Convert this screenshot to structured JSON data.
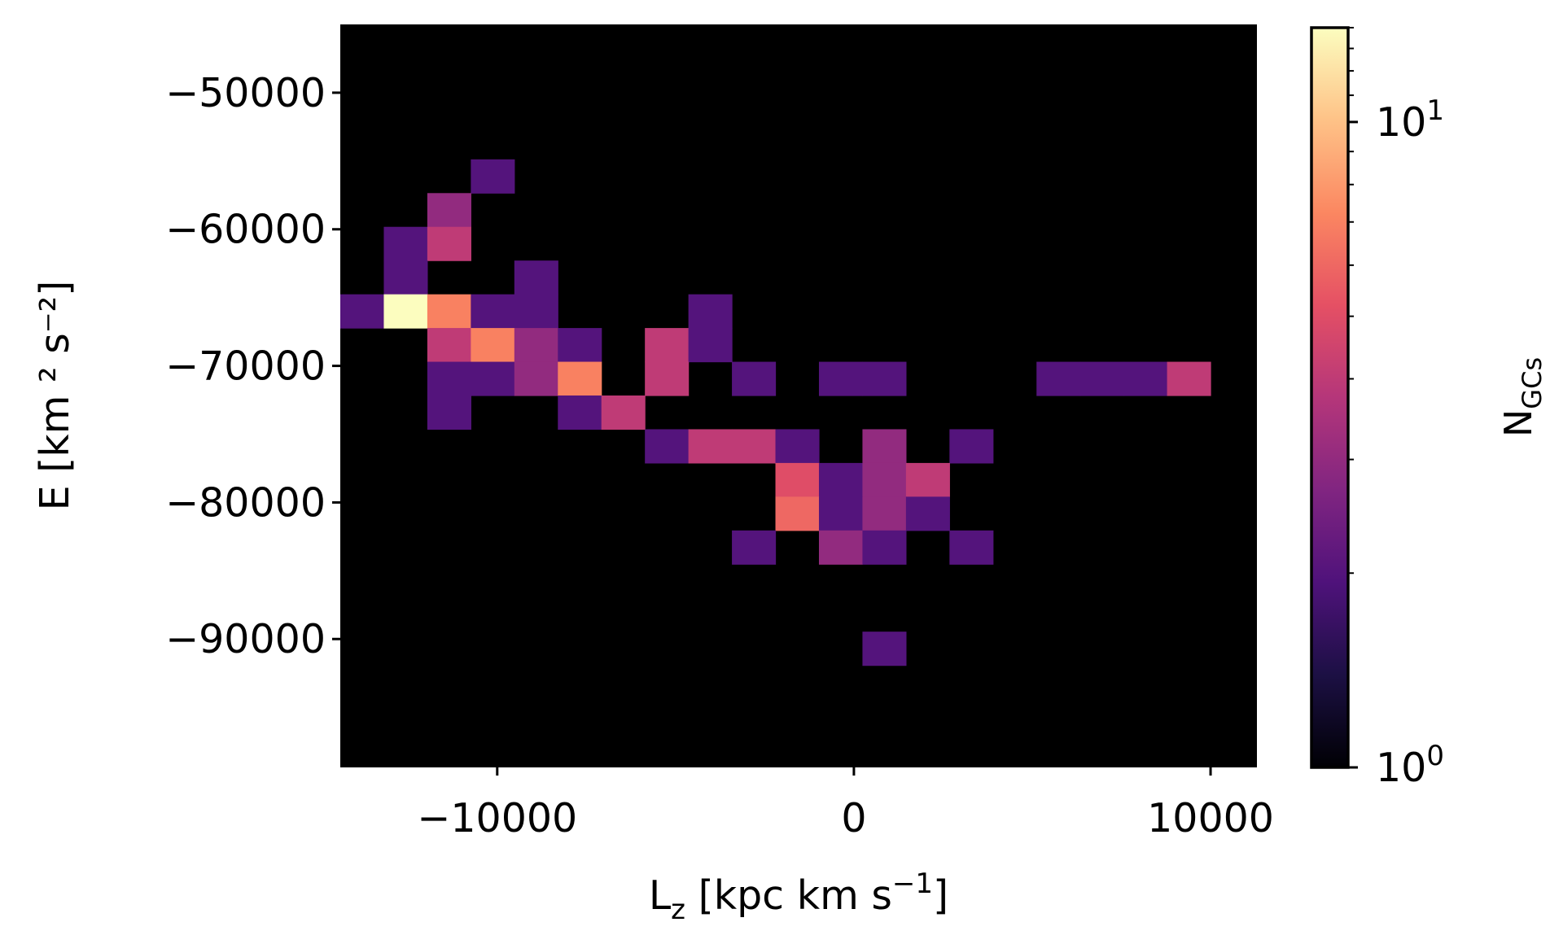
{
  "chart_data": {
    "type": "heatmap",
    "xlabel": {
      "main": "L",
      "sub": "z",
      "rest": " [kpc km s",
      "sup": "−1",
      "end": "]"
    },
    "ylabel": "E [km ² s⁻²]",
    "colorbar_label": {
      "main": "N",
      "sub": "GCs"
    },
    "colorbar_scale": "log",
    "colorbar_range": [
      1,
      14
    ],
    "colorbar_ticks": [
      {
        "value": 1,
        "label": "10",
        "exp": "0"
      },
      {
        "value": 10,
        "label": "10",
        "exp": "1"
      }
    ],
    "colormap": "magma",
    "xlim": [
      -14400,
      11300
    ],
    "ylim": [
      -99400,
      -45000
    ],
    "xticks": [
      {
        "value": -10000,
        "label": "−10000"
      },
      {
        "value": 0,
        "label": "0"
      },
      {
        "value": 10000,
        "label": "10000"
      }
    ],
    "yticks": [
      {
        "value": -50000,
        "label": "−50000"
      },
      {
        "value": -60000,
        "label": "−60000"
      },
      {
        "value": -70000,
        "label": "−70000"
      },
      {
        "value": -80000,
        "label": "−80000"
      },
      {
        "value": -90000,
        "label": "−90000"
      }
    ],
    "bin_x0": -14400,
    "bin_dx": 1220,
    "bin_y0": -45000,
    "bin_dy": 2470,
    "cells": [
      {
        "x": -10300,
        "y": -54300,
        "count": 2
      },
      {
        "x": -11500,
        "y": -56800,
        "count": 3
      },
      {
        "x": -12700,
        "y": -59200,
        "count": 2
      },
      {
        "x": -11500,
        "y": -59200,
        "count": 4
      },
      {
        "x": -12700,
        "y": -61700,
        "count": 2
      },
      {
        "x": -9000,
        "y": -61700,
        "count": 2
      },
      {
        "x": -13900,
        "y": -64200,
        "count": 2
      },
      {
        "x": -12700,
        "y": -64200,
        "count": 14
      },
      {
        "x": -11500,
        "y": -64200,
        "count": 7
      },
      {
        "x": -10300,
        "y": -64200,
        "count": 2
      },
      {
        "x": -9000,
        "y": -64200,
        "count": 2
      },
      {
        "x": -4200,
        "y": -64200,
        "count": 2
      },
      {
        "x": -11500,
        "y": -66600,
        "count": 4
      },
      {
        "x": -10300,
        "y": -66600,
        "count": 7
      },
      {
        "x": -9000,
        "y": -66600,
        "count": 3
      },
      {
        "x": -7800,
        "y": -66600,
        "count": 2
      },
      {
        "x": -5400,
        "y": -66600,
        "count": 4
      },
      {
        "x": -4200,
        "y": -66600,
        "count": 2
      },
      {
        "x": -11500,
        "y": -69100,
        "count": 2
      },
      {
        "x": -10300,
        "y": -69100,
        "count": 2
      },
      {
        "x": -9000,
        "y": -69100,
        "count": 3
      },
      {
        "x": -7800,
        "y": -69100,
        "count": 7
      },
      {
        "x": -5400,
        "y": -69100,
        "count": 4
      },
      {
        "x": -3000,
        "y": -69100,
        "count": 2
      },
      {
        "x": -600,
        "y": -69100,
        "count": 2
      },
      {
        "x": 600,
        "y": -69100,
        "count": 2
      },
      {
        "x": 5500,
        "y": -69100,
        "count": 2
      },
      {
        "x": 6700,
        "y": -69100,
        "count": 2
      },
      {
        "x": 7900,
        "y": -69100,
        "count": 2
      },
      {
        "x": 9100,
        "y": -69100,
        "count": 4
      },
      {
        "x": -11500,
        "y": -71600,
        "count": 2
      },
      {
        "x": -7800,
        "y": -71600,
        "count": 2
      },
      {
        "x": -6600,
        "y": -71600,
        "count": 4
      },
      {
        "x": -5400,
        "y": -74000,
        "count": 2
      },
      {
        "x": -4200,
        "y": -74000,
        "count": 4
      },
      {
        "x": -3000,
        "y": -74000,
        "count": 4
      },
      {
        "x": -1800,
        "y": -74000,
        "count": 2
      },
      {
        "x": 600,
        "y": -74000,
        "count": 3
      },
      {
        "x": 3100,
        "y": -74000,
        "count": 2
      },
      {
        "x": -1800,
        "y": -76500,
        "count": 5
      },
      {
        "x": -600,
        "y": -76500,
        "count": 2
      },
      {
        "x": 600,
        "y": -76500,
        "count": 3
      },
      {
        "x": 1900,
        "y": -76500,
        "count": 4
      },
      {
        "x": -1800,
        "y": -78900,
        "count": 6
      },
      {
        "x": -600,
        "y": -78900,
        "count": 2
      },
      {
        "x": 600,
        "y": -78900,
        "count": 3
      },
      {
        "x": 1900,
        "y": -78900,
        "count": 2
      },
      {
        "x": -3000,
        "y": -81400,
        "count": 2
      },
      {
        "x": -600,
        "y": -81400,
        "count": 3
      },
      {
        "x": 600,
        "y": -81400,
        "count": 2
      },
      {
        "x": 3100,
        "y": -81400,
        "count": 2
      },
      {
        "x": 600,
        "y": -88800,
        "count": 2
      }
    ]
  }
}
